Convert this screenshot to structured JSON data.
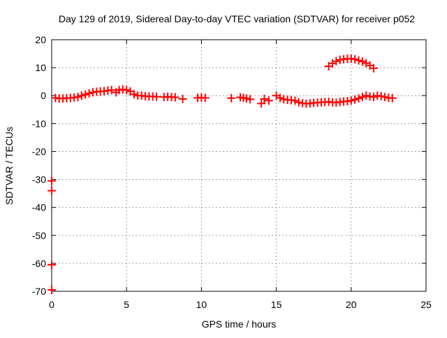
{
  "chart_data": {
    "type": "scatter",
    "title": "Day 129 of 2019, Sidereal Day-to-day VTEC variation (SDTVAR) for receiver p052",
    "xlabel": "GPS time / hours",
    "ylabel": "SDTVAR / TECUs",
    "xlim": [
      0,
      25
    ],
    "ylim": [
      -70,
      20
    ],
    "xticks": [
      "0",
      "5",
      "10",
      "15",
      "20",
      "25"
    ],
    "yticks": [
      "20",
      "10",
      "0",
      "-10",
      "-20",
      "-30",
      "-40",
      "-50",
      "-60",
      "-70"
    ],
    "grid": true,
    "marker_color": "#ff0000",
    "series": [
      {
        "name": "SDTVAR",
        "x": [
          0.0,
          0.0,
          0.0,
          0.0,
          0.25,
          0.5,
          0.75,
          1.0,
          1.25,
          1.5,
          1.75,
          2.0,
          2.25,
          2.5,
          2.75,
          3.0,
          3.25,
          3.5,
          3.75,
          4.0,
          4.3,
          4.5,
          4.75,
          5.0,
          5.25,
          5.5,
          5.75,
          6.0,
          6.25,
          6.5,
          6.75,
          7.0,
          7.5,
          7.75,
          8.0,
          8.25,
          8.75,
          9.75,
          10.0,
          10.25,
          12.0,
          12.6,
          12.8,
          13.0,
          13.25,
          14.0,
          14.2,
          14.5,
          15.0,
          15.25,
          15.5,
          15.75,
          16.0,
          16.25,
          16.5,
          16.75,
          17.0,
          17.25,
          17.5,
          17.75,
          18.0,
          18.25,
          18.5,
          18.75,
          19.0,
          19.25,
          19.5,
          19.75,
          20.0,
          20.25,
          20.5,
          20.75,
          21.0,
          21.25,
          21.5,
          21.75,
          22.0,
          22.25,
          22.5,
          22.75,
          18.5,
          18.75,
          19.0,
          19.25,
          19.5,
          19.75,
          20.0,
          20.25,
          20.5,
          20.75,
          21.0,
          21.25,
          21.5
        ],
        "y": [
          -30.5,
          -34.0,
          -60.5,
          -69.5,
          -0.8,
          -1.0,
          -1.0,
          -0.9,
          -0.8,
          -0.7,
          -0.5,
          0.0,
          0.4,
          0.8,
          1.2,
          1.4,
          1.5,
          1.6,
          1.8,
          2.0,
          1.2,
          2.0,
          2.2,
          2.0,
          1.5,
          0.5,
          0.0,
          0.0,
          -0.2,
          -0.3,
          -0.3,
          -0.4,
          -0.5,
          -0.4,
          -0.5,
          -0.6,
          -1.2,
          -0.8,
          -0.7,
          -0.8,
          -0.9,
          -0.6,
          -0.8,
          -1.0,
          -1.3,
          -2.8,
          -1.2,
          -1.8,
          0.0,
          -0.8,
          -1.3,
          -1.5,
          -1.6,
          -1.8,
          -2.4,
          -2.7,
          -2.9,
          -2.8,
          -2.6,
          -2.5,
          -2.4,
          -2.3,
          -2.2,
          -2.4,
          -2.5,
          -2.3,
          -2.1,
          -2.0,
          -1.8,
          -1.4,
          -1.0,
          -0.5,
          0.0,
          -0.3,
          -0.5,
          0.0,
          -0.2,
          -0.5,
          -0.8,
          -0.9,
          10.5,
          11.5,
          12.3,
          12.8,
          13.0,
          13.2,
          13.2,
          13.0,
          12.6,
          12.2,
          11.6,
          10.8,
          9.8
        ]
      }
    ]
  }
}
